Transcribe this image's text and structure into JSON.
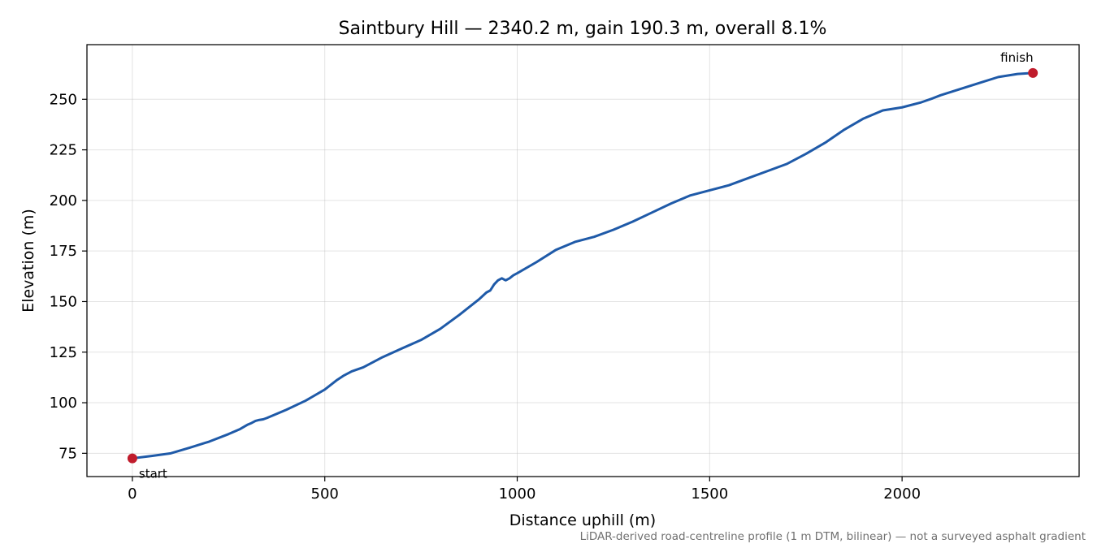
{
  "chart_data": {
    "type": "line",
    "title": "Saintbury Hill — 2340.2 m, gain 190.3 m, overall 8.1%",
    "xlabel": "Distance uphill (m)",
    "ylabel": "Elevation (m)",
    "xlim": [
      -118,
      2460
    ],
    "ylim": [
      63.5,
      277
    ],
    "x_ticks": [
      0,
      500,
      1000,
      1500,
      2000
    ],
    "y_ticks": [
      75,
      100,
      125,
      150,
      175,
      200,
      225,
      250
    ],
    "grid": true,
    "footnote": "LiDAR-derived road-centreline profile (1 m DTM, bilinear) — not a surveyed asphalt gradient",
    "colors": {
      "line": "#1f5aa8",
      "marker": "#c01c2c"
    },
    "series": [
      {
        "x": [
          0,
          50,
          100,
          150,
          200,
          250,
          280,
          300,
          310,
          320,
          330,
          340,
          350,
          400,
          450,
          500,
          530,
          550,
          570,
          600,
          650,
          700,
          750,
          800,
          850,
          900,
          920,
          930,
          940,
          950,
          960,
          970,
          980,
          990,
          1000,
          1050,
          1100,
          1150,
          1200,
          1250,
          1300,
          1350,
          1400,
          1450,
          1500,
          1550,
          1600,
          1650,
          1700,
          1750,
          1800,
          1850,
          1900,
          1950,
          2000,
          2050,
          2080,
          2100,
          2150,
          2200,
          2250,
          2300,
          2340
        ],
        "y": [
          72.5,
          73.7,
          75.0,
          77.8,
          80.8,
          84.5,
          87.0,
          89.2,
          90.0,
          91.0,
          91.5,
          91.8,
          92.5,
          96.5,
          101.0,
          106.5,
          111.0,
          113.5,
          115.5,
          117.5,
          122.5,
          126.8,
          131.0,
          136.5,
          143.5,
          151.0,
          154.5,
          155.5,
          158.5,
          160.5,
          161.5,
          160.5,
          161.5,
          163.0,
          164.0,
          169.5,
          175.5,
          179.5,
          182.0,
          185.5,
          189.5,
          194.0,
          198.5,
          202.5,
          205.0,
          207.5,
          211.0,
          214.5,
          218.0,
          223.0,
          228.5,
          235.0,
          240.5,
          244.5,
          246.0,
          248.5,
          250.5,
          252.0,
          255.0,
          258.0,
          261.0,
          262.5,
          263.0
        ]
      }
    ],
    "annotations": [
      {
        "label": "start",
        "x": 0,
        "y": 72.5
      },
      {
        "label": "finish",
        "x": 2340,
        "y": 263.0
      }
    ]
  }
}
